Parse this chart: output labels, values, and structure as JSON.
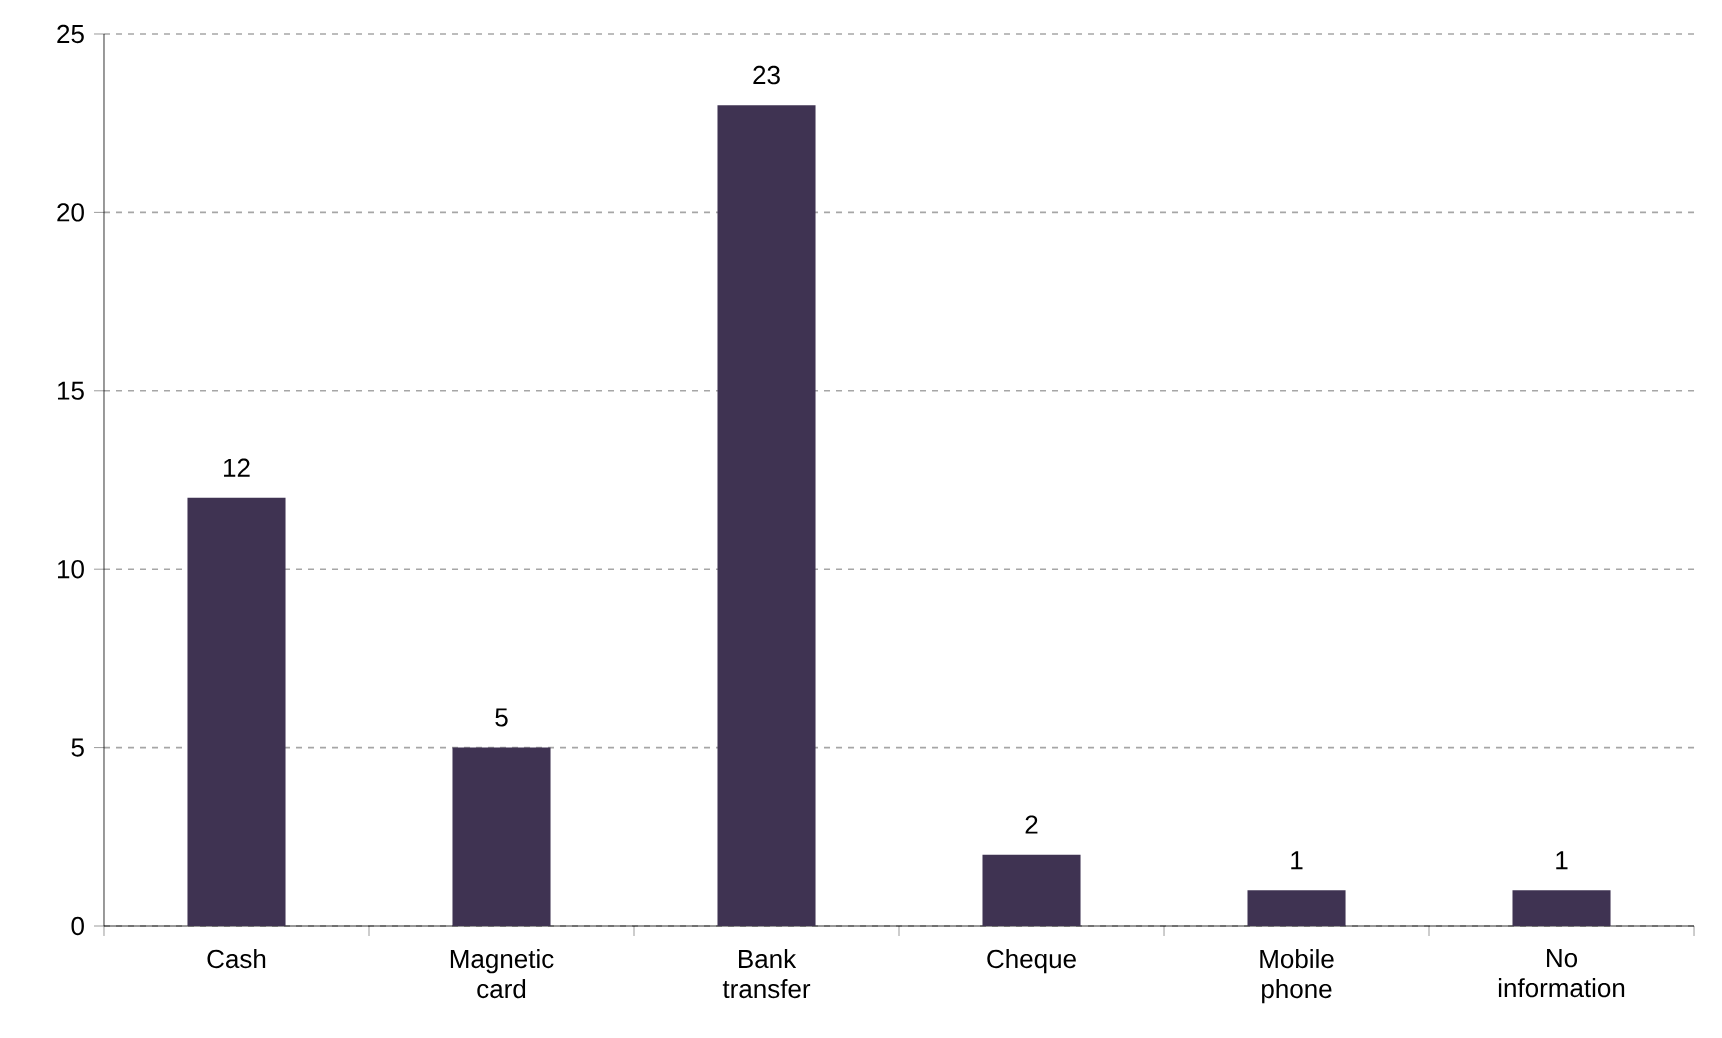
{
  "chart_data": {
    "type": "bar",
    "categories": [
      "Cash",
      "Magnetic card",
      "Bank transfer",
      "Cheque",
      "Mobile phone",
      "No information"
    ],
    "values": [
      12,
      5,
      23,
      2,
      1,
      1
    ],
    "color": "#3f3352",
    "ylim": [
      0,
      25
    ],
    "yticks": [
      0,
      5,
      10,
      15,
      20,
      25
    ],
    "grid": "y",
    "data_labels": true
  }
}
